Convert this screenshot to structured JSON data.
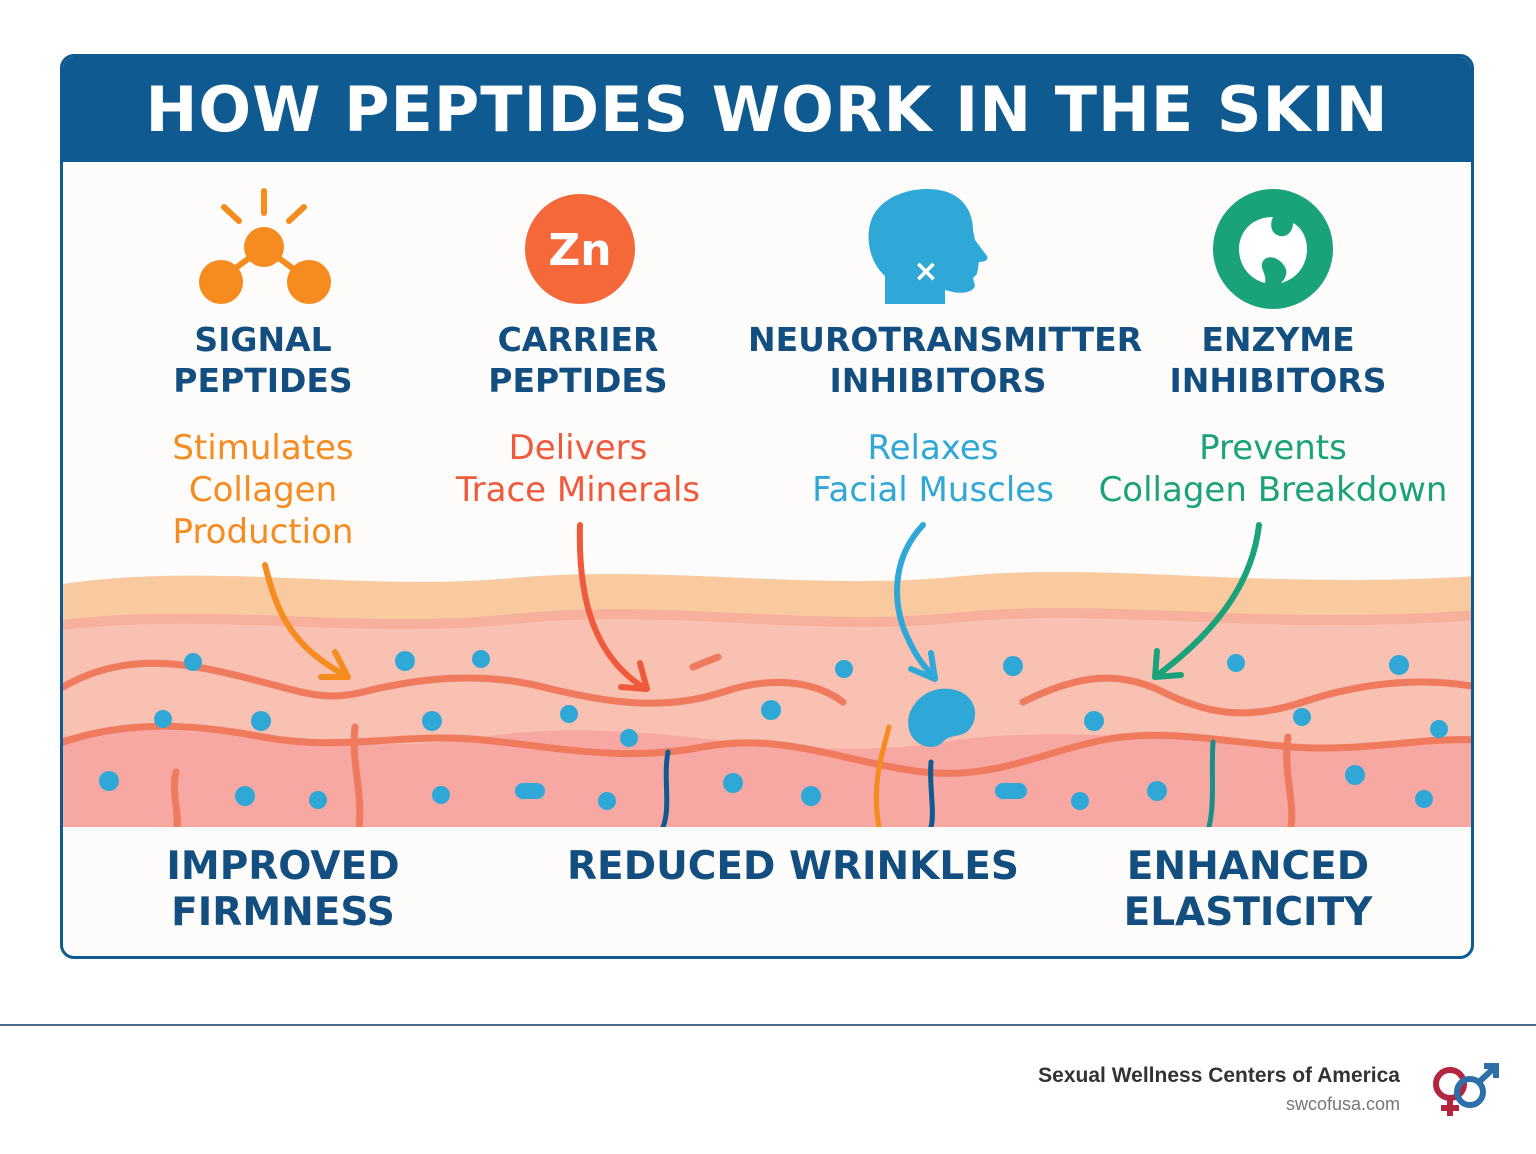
{
  "title": "HOW PEPTIDES WORK IN THE SKIN",
  "colors": {
    "header": "#0f5a91",
    "signal": "#f68b1f",
    "carrier": "#f05a3c",
    "neuro": "#2fa8d8",
    "enzyme": "#1aa37a",
    "heading": "#134e80"
  },
  "peptides": [
    {
      "icon": "molecule-icon",
      "title_line1": "SIGNAL",
      "title_line2": "PEPTIDES",
      "desc_line1": "Stimulates",
      "desc_line2": "Collagen",
      "desc_line3": "Production"
    },
    {
      "icon": "zinc-icon",
      "icon_text": "Zn",
      "title_line1": "CARRIER",
      "title_line2": "PEPTIDES",
      "desc_line1": "Delivers",
      "desc_line2": "Trace Minerals"
    },
    {
      "icon": "head-icon",
      "icon_text": "×",
      "title_line1": "NEUROTRANSMITTER",
      "title_line2": "INHIBITORS",
      "desc_line1": "Relaxes",
      "desc_line2": "Facial Muscles"
    },
    {
      "icon": "enzyme-icon",
      "title_line1": "ENZYME",
      "title_line2": "INHIBITORS",
      "desc_line1": "Prevents",
      "desc_line2": "Collagen Breakdown"
    }
  ],
  "results": [
    {
      "line1": "IMPROVED",
      "line2": "FIRMNESS"
    },
    {
      "line1": "REDUCED WRINKLES"
    },
    {
      "line1": "ENHANCED",
      "line2": "ELASTICITY"
    }
  ],
  "footer": {
    "brand": "Sexual Wellness Centers of America",
    "url": "swcofusa.com",
    "logo": "gender-symbols-logo"
  }
}
